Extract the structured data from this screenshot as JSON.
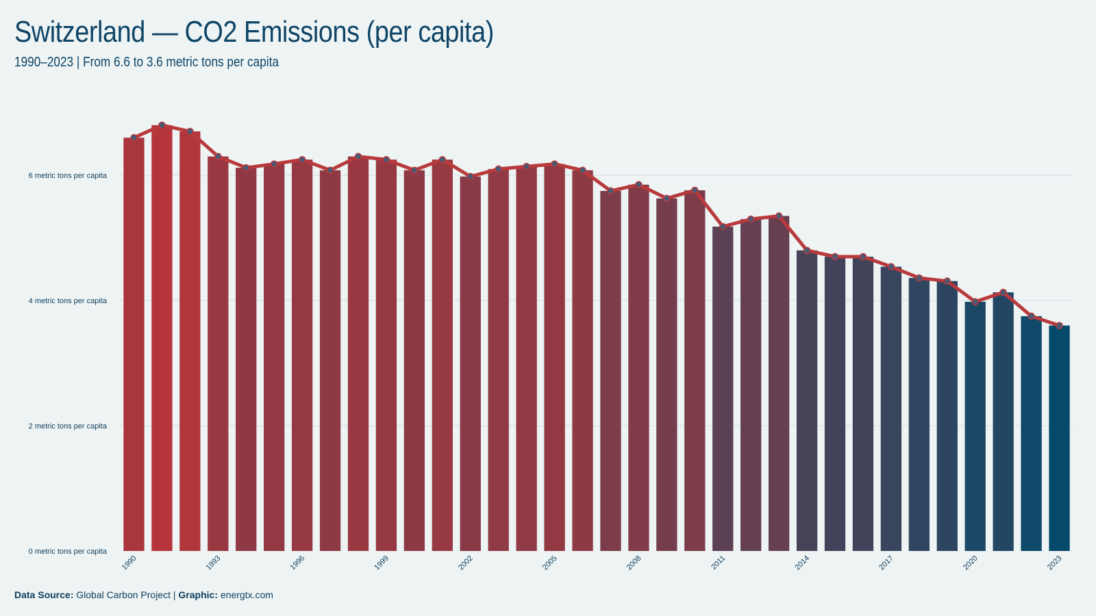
{
  "title": "Switzerland — CO2 Emissions (per capita)",
  "subtitle": "1990–2023 | From 6.6 to 3.6 metric tons per capita",
  "footer": {
    "source_label": "Data Source:",
    "source_value": "Global Carbon Project",
    "separator": "|",
    "graphic_label": "Graphic:",
    "graphic_value": "energtx.com"
  },
  "colors": {
    "background": "#eef4f4",
    "bar_start": "#b5353a",
    "bar_end": "#064a6b",
    "line": "#b83a3c",
    "marker": "#4a5a75",
    "grid": "#d9e0e3",
    "text": "#0e3d5c"
  },
  "chart_data": {
    "type": "bar",
    "overlay": "line-with-markers",
    "x": [
      1990,
      1991,
      1992,
      1993,
      1994,
      1995,
      1996,
      1997,
      1998,
      1999,
      2000,
      2001,
      2002,
      2003,
      2004,
      2005,
      2006,
      2007,
      2008,
      2009,
      2010,
      2011,
      2012,
      2013,
      2014,
      2015,
      2016,
      2017,
      2018,
      2019,
      2020,
      2021,
      2022,
      2023
    ],
    "values": [
      6.6,
      6.8,
      6.7,
      6.3,
      6.12,
      6.18,
      6.25,
      6.08,
      6.3,
      6.25,
      6.08,
      6.25,
      5.98,
      6.1,
      6.14,
      6.18,
      6.08,
      5.75,
      5.85,
      5.63,
      5.76,
      5.18,
      5.3,
      5.35,
      4.8,
      4.7,
      4.7,
      4.54,
      4.36,
      4.31,
      3.98,
      4.13,
      3.75,
      3.6
    ],
    "x_tick_labels": [
      "1990",
      "1993",
      "1996",
      "1999",
      "2002",
      "2005",
      "2008",
      "2011",
      "2014",
      "2017",
      "2020",
      "2023"
    ],
    "y_tick_values": [
      0,
      2,
      4,
      6
    ],
    "y_tick_labels": [
      "0 metric tons per capita",
      "2 metric tons per capita",
      "4 metric tons per capita",
      "6 metric tons per capita"
    ],
    "ylim": [
      0,
      7.05
    ],
    "grid": true,
    "legend": "none"
  }
}
